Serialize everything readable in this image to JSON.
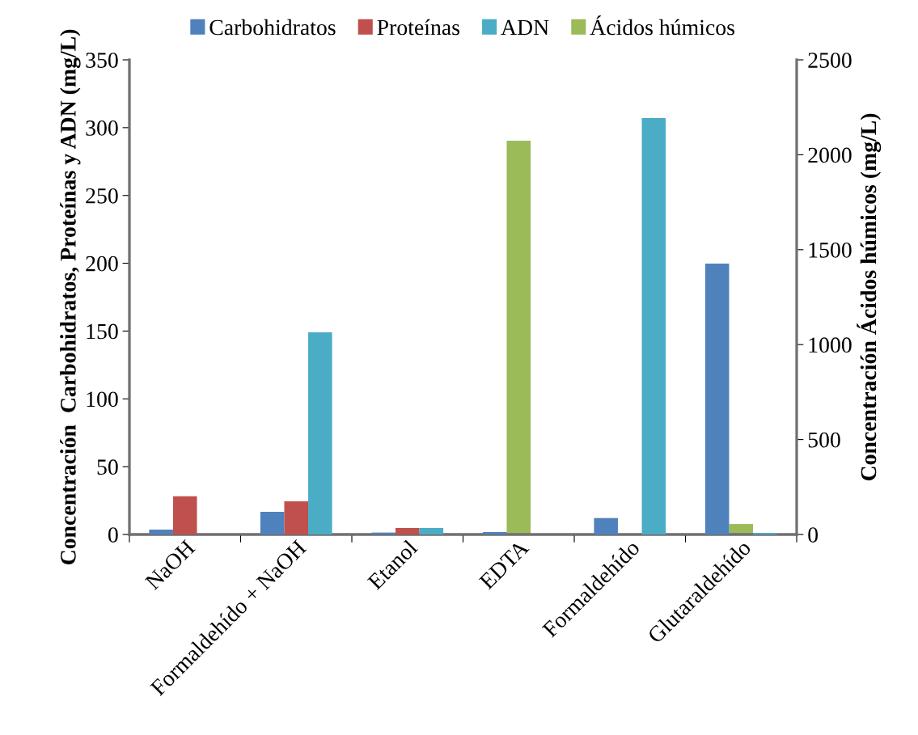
{
  "chart_data": {
    "type": "bar",
    "ylabel": "Concentración  Carbohidratos, Proteínas y ADN (mg/L)",
    "y2label": "Concentración Ácidos húmicos (mg/L)",
    "categories": [
      "NaOH",
      "Formaldehído + NaOH",
      "Etanol",
      "EDTA",
      "Formaldehído",
      "Glutaraldehído"
    ],
    "series": [
      {
        "name": "Carbohidratos",
        "color": "#4f81bd",
        "values": [
          3.6,
          16.7,
          1.4,
          1.8,
          12.1,
          199.8
        ]
      },
      {
        "name": "Proteínas",
        "color": "#c0504d",
        "values": [
          28.2,
          24.4,
          4.8,
          null,
          null,
          null
        ]
      },
      {
        "name": "ADN",
        "color": "#4bacc6",
        "values": [
          null,
          149,
          4.8,
          null,
          307,
          1.2
        ]
      },
      {
        "name": "Ácidos húmicos",
        "color": "#9bbb59",
        "axis": "y2",
        "values": [
          null,
          4,
          null,
          2074,
          null,
          55
        ]
      }
    ],
    "ylim": [
      0,
      350
    ],
    "yticks": [
      0,
      50,
      100,
      150,
      200,
      250,
      300,
      350
    ],
    "y2lim": [
      0,
      2500
    ],
    "y2ticks": [
      0,
      500,
      1000,
      1500,
      2000,
      2500
    ],
    "grid": false,
    "legend": "top"
  }
}
